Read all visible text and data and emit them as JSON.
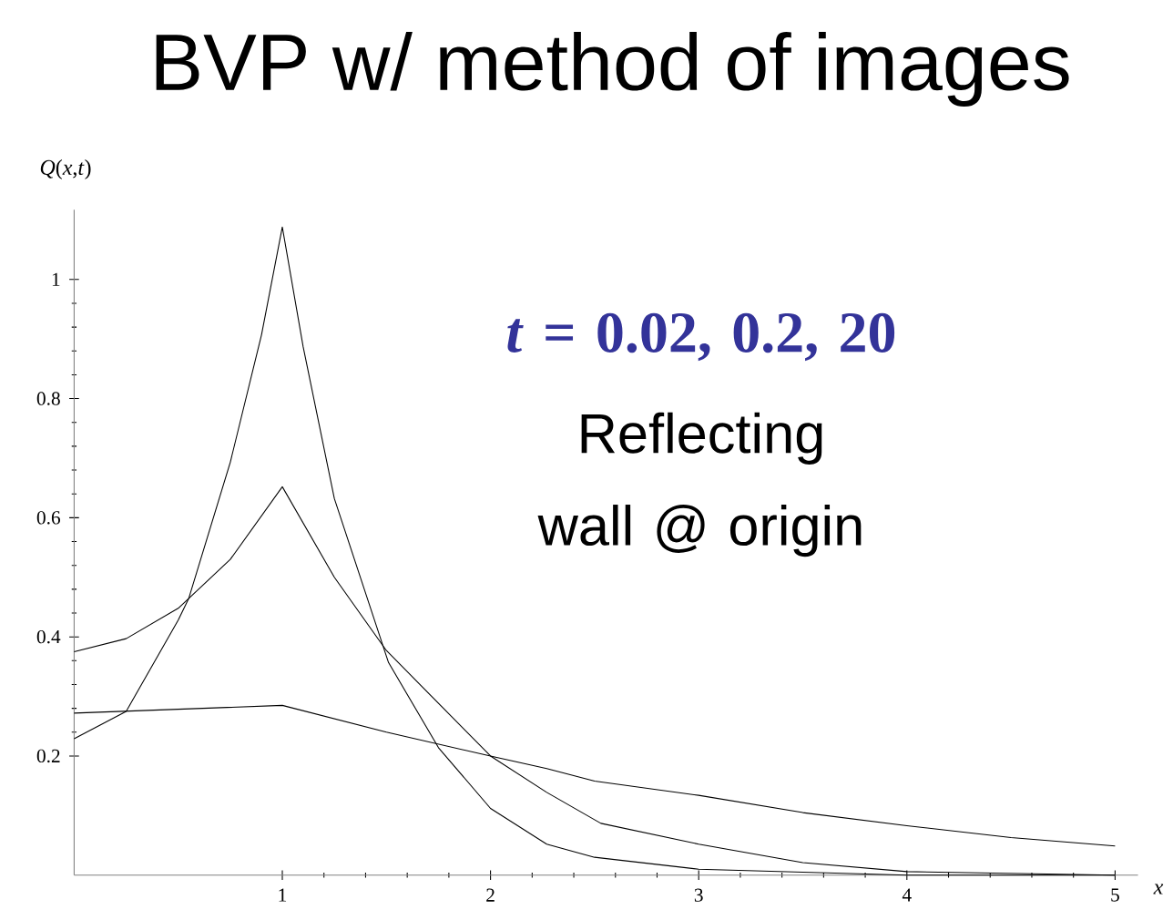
{
  "chart_data": {
    "type": "line",
    "title": "BVP w/ method of images",
    "xlabel": "x",
    "ylabel": "*Q*(*x*,*t*)",
    "annotations": [
      "*t* = 0.02, 0.2, 20",
      "Reflecting wall @ origin"
    ],
    "xlim": [
      0,
      5.11
    ],
    "ylim": [
      0,
      1.117
    ],
    "xticks": [
      1,
      2,
      3,
      4,
      5
    ],
    "yticks": [
      0.2,
      0.4,
      0.6,
      0.8,
      1
    ],
    "series": [
      {
        "color": "#000000",
        "x": [
          0,
          0.25,
          0.5,
          0.55,
          0.75,
          0.9,
          1,
          1.1,
          1.25,
          1.51,
          1.75,
          2,
          2.27,
          2.5,
          3,
          4,
          5
        ],
        "values": [
          0.229,
          0.275,
          0.428,
          0.464,
          0.693,
          0.907,
          1.088,
          0.887,
          0.632,
          0.357,
          0.214,
          0.112,
          0.052,
          0.03,
          0.01,
          0,
          0
        ]
      },
      {
        "color": "#000000",
        "x": [
          0,
          0.25,
          0.5,
          0.75,
          1,
          1.25,
          1.5,
          2,
          2.27,
          2.53,
          3,
          3.5,
          4,
          5
        ],
        "values": [
          0.375,
          0.397,
          0.448,
          0.53,
          0.652,
          0.5,
          0.377,
          0.2,
          0.139,
          0.087,
          0.052,
          0.021,
          0.006,
          0
        ]
      },
      {
        "color": "#000000",
        "x": [
          0,
          1,
          1.5,
          2,
          2.27,
          2.5,
          3,
          3.5,
          4,
          4.5,
          5
        ],
        "values": [
          0.272,
          0.285,
          0.24,
          0.2,
          0.179,
          0.158,
          0.134,
          0.105,
          0.083,
          0.063,
          0.049
        ]
      }
    ]
  }
}
